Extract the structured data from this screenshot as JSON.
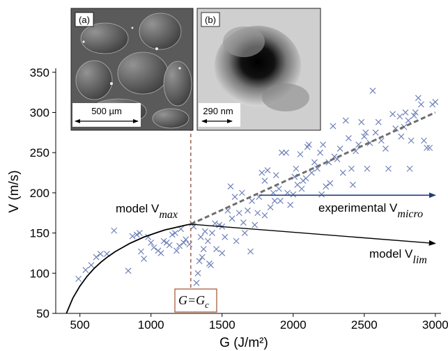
{
  "chart_data": {
    "type": "scatter",
    "xlabel": "G (J/m²)",
    "ylabel": "V (m/s)",
    "xlim": [
      330,
      3040
    ],
    "ylim": [
      50,
      355
    ],
    "x_ticks": [
      "500",
      "1000",
      "1500",
      "2000",
      "2500",
      "3000"
    ],
    "y_ticks": [
      "50",
      "100",
      "150",
      "200",
      "250",
      "300",
      "350"
    ],
    "gc_value": 1280,
    "gc_label": "G=G",
    "gc_label_sub": "c",
    "annotations": {
      "vmax": {
        "text": "model V",
        "sub": "max"
      },
      "vmicro": {
        "text": "experimental V",
        "sub": "micro"
      },
      "vlim": {
        "text": "model V",
        "sub": "lim"
      }
    },
    "insets": [
      {
        "label": "(a)",
        "scale": "500 µm"
      },
      {
        "label": "(b)",
        "scale": "290 nm"
      }
    ],
    "colors": {
      "markers": "#6f82b8",
      "model_curve": "#000000",
      "dashed_fit": "#6e6e6e",
      "arrow_micro": "#1f3d7a",
      "gc_line": "#8a4a3a",
      "gc_box": "#a0522d"
    },
    "series": [
      {
        "type": "scatter",
        "marker": "x",
        "points": [
          [
            490,
            93
          ],
          [
            540,
            104
          ],
          [
            580,
            110
          ],
          [
            615,
            120
          ],
          [
            645,
            124
          ],
          [
            690,
            124
          ],
          [
            740,
            153
          ],
          [
            840,
            103
          ],
          [
            870,
            146
          ],
          [
            900,
            148
          ],
          [
            920,
            150
          ],
          [
            930,
            127
          ],
          [
            950,
            118
          ],
          [
            980,
            145
          ],
          [
            1000,
            138
          ],
          [
            1020,
            132
          ],
          [
            1050,
            128
          ],
          [
            1070,
            125
          ],
          [
            1090,
            140
          ],
          [
            1110,
            138
          ],
          [
            1130,
            135
          ],
          [
            1150,
            148
          ],
          [
            1170,
            150
          ],
          [
            1180,
            128
          ],
          [
            1200,
            134
          ],
          [
            1210,
            155
          ],
          [
            1230,
            138
          ],
          [
            1245,
            142
          ],
          [
            1270,
            136
          ],
          [
            1290,
            162
          ],
          [
            1300,
            158
          ],
          [
            1320,
            88
          ],
          [
            1330,
            100
          ],
          [
            1340,
            115
          ],
          [
            1350,
            145
          ],
          [
            1360,
            120
          ],
          [
            1370,
            130
          ],
          [
            1380,
            152
          ],
          [
            1400,
            140
          ],
          [
            1410,
            112
          ],
          [
            1420,
            110
          ],
          [
            1430,
            150
          ],
          [
            1450,
            162
          ],
          [
            1460,
            130
          ],
          [
            1480,
            160
          ],
          [
            1500,
            125
          ],
          [
            1500,
            158
          ],
          [
            1520,
            145
          ],
          [
            1540,
            178
          ],
          [
            1560,
            208
          ],
          [
            1570,
            168
          ],
          [
            1590,
            195
          ],
          [
            1600,
            140
          ],
          [
            1620,
            175
          ],
          [
            1640,
            200
          ],
          [
            1650,
            163
          ],
          [
            1660,
            150
          ],
          [
            1680,
            178
          ],
          [
            1700,
            127
          ],
          [
            1710,
            190
          ],
          [
            1730,
            160
          ],
          [
            1750,
            175
          ],
          [
            1760,
            195
          ],
          [
            1780,
            225
          ],
          [
            1800,
            172
          ],
          [
            1800,
            215
          ],
          [
            1820,
            228
          ],
          [
            1840,
            182
          ],
          [
            1860,
            200
          ],
          [
            1870,
            190
          ],
          [
            1880,
            222
          ],
          [
            1900,
            205
          ],
          [
            1910,
            190
          ],
          [
            1920,
            250
          ],
          [
            1950,
            250
          ],
          [
            1960,
            200
          ],
          [
            1980,
            185
          ],
          [
            2000,
            198
          ],
          [
            2010,
            220
          ],
          [
            2020,
            230
          ],
          [
            2030,
            210
          ],
          [
            2050,
            248
          ],
          [
            2060,
            205
          ],
          [
            2070,
            215
          ],
          [
            2090,
            218
          ],
          [
            2100,
            257
          ],
          [
            2110,
            260
          ],
          [
            2130,
            225
          ],
          [
            2150,
            238
          ],
          [
            2170,
            230
          ],
          [
            2190,
            250
          ],
          [
            2200,
            198
          ],
          [
            2210,
            260
          ],
          [
            2230,
            208
          ],
          [
            2250,
            238
          ],
          [
            2260,
            212
          ],
          [
            2280,
            283
          ],
          [
            2290,
            245
          ],
          [
            2310,
            242
          ],
          [
            2330,
            255
          ],
          [
            2350,
            225
          ],
          [
            2370,
            290
          ],
          [
            2390,
            268
          ],
          [
            2410,
            230
          ],
          [
            2420,
            210
          ],
          [
            2440,
            252
          ],
          [
            2460,
            260
          ],
          [
            2480,
            288
          ],
          [
            2500,
            270
          ],
          [
            2510,
            275
          ],
          [
            2520,
            230
          ],
          [
            2540,
            262
          ],
          [
            2560,
            327
          ],
          [
            2580,
            275
          ],
          [
            2600,
            288
          ],
          [
            2620,
            265
          ],
          [
            2650,
            255
          ],
          [
            2670,
            230
          ],
          [
            2700,
            298
          ],
          [
            2720,
            280
          ],
          [
            2750,
            295
          ],
          [
            2760,
            270
          ],
          [
            2780,
            282
          ],
          [
            2790,
            300
          ],
          [
            2810,
            290
          ],
          [
            2820,
            230
          ],
          [
            2830,
            265
          ],
          [
            2850,
            296
          ],
          [
            2860,
            300
          ],
          [
            2880,
            318
          ],
          [
            2900,
            310
          ],
          [
            2920,
            265
          ],
          [
            2940,
            256
          ],
          [
            2960,
            256
          ],
          [
            2980,
            310
          ],
          [
            3000,
            313
          ]
        ]
      },
      {
        "type": "line",
        "style": "solid",
        "points": [
          [
            405,
            50
          ],
          [
            450,
            69
          ],
          [
            500,
            84
          ],
          [
            550,
            96
          ],
          [
            600,
            106
          ],
          [
            650,
            114
          ],
          [
            700,
            121
          ],
          [
            750,
            127
          ],
          [
            800,
            132
          ],
          [
            850,
            137
          ],
          [
            900,
            141
          ],
          [
            950,
            145
          ],
          [
            1000,
            148
          ],
          [
            1050,
            151
          ],
          [
            1100,
            154
          ],
          [
            1150,
            156
          ],
          [
            1200,
            158
          ],
          [
            1250,
            160
          ],
          [
            1280,
            161
          ]
        ]
      },
      {
        "type": "line",
        "style": "dashed",
        "points": [
          [
            1280,
            161
          ],
          [
            3000,
            300
          ]
        ]
      },
      {
        "type": "arrow",
        "points": [
          [
            1280,
            161
          ],
          [
            3000,
            137
          ]
        ]
      },
      {
        "type": "arrow",
        "points": [
          [
            1760,
            197
          ],
          [
            3000,
            197
          ]
        ]
      }
    ]
  }
}
